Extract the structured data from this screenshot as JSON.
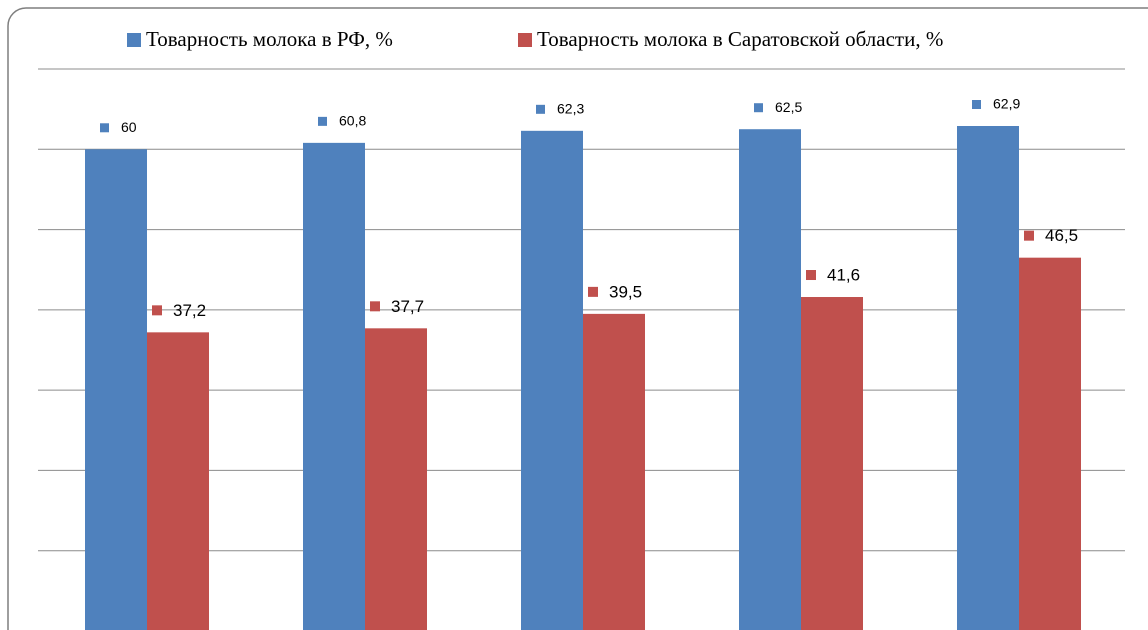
{
  "chart_data": {
    "type": "bar",
    "categories": [
      null,
      null,
      null,
      null,
      null
    ],
    "series": [
      {
        "name": "Товарность молока в РФ, %",
        "color": "#4f81bd",
        "values": [
          60,
          60.8,
          62.3,
          62.5,
          62.9
        ],
        "value_labels": [
          "60",
          "60,8",
          "62,3",
          "62,5",
          "62,9"
        ]
      },
      {
        "name": "Товарность молока в Саратовской области, %",
        "color": "#c0504d",
        "values": [
          37.2,
          37.7,
          39.5,
          41.6,
          46.5
        ],
        "value_labels": [
          "37,2",
          "37,7",
          "39,5",
          "41,6",
          "46,5"
        ]
      }
    ],
    "ylim": [
      0,
      70
    ],
    "yticks": [
      0,
      10,
      20,
      30,
      40,
      50,
      60,
      70
    ],
    "grid": true
  }
}
